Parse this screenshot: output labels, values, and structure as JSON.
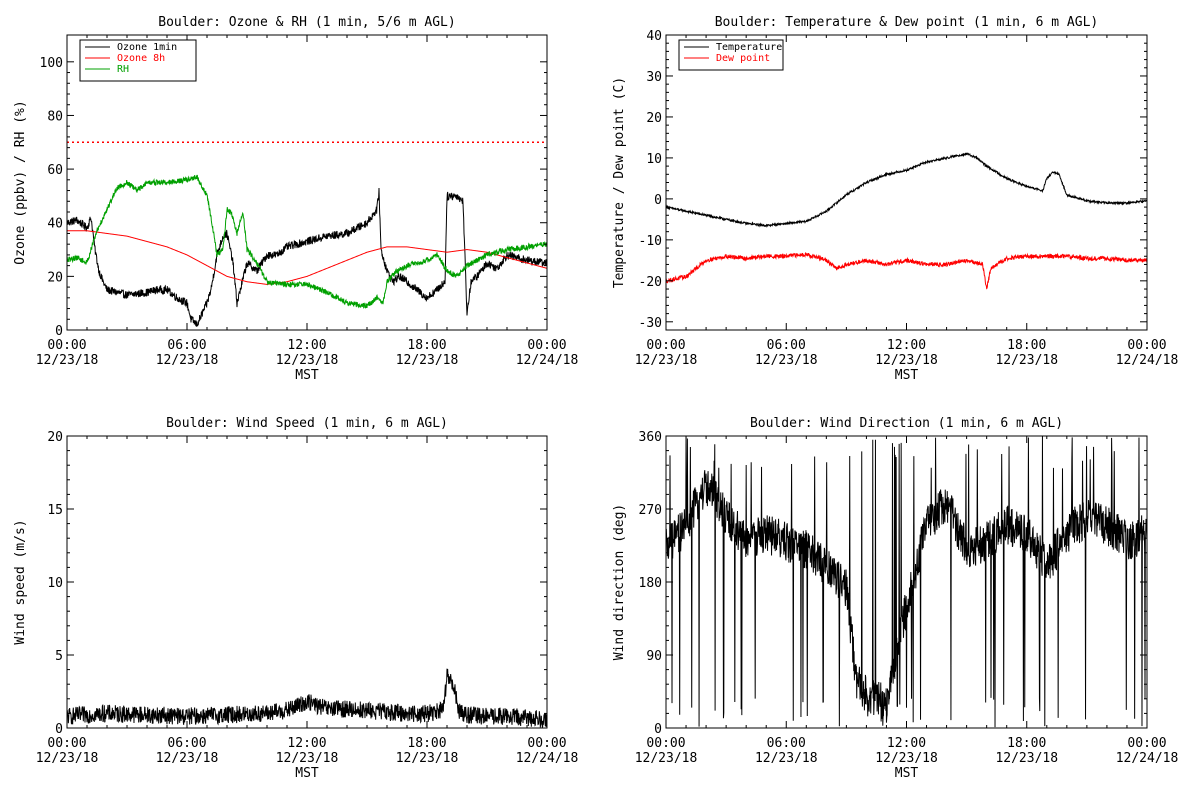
{
  "chart_data": [
    {
      "type": "line",
      "title": "Boulder: Ozone & RH (1 min, 5/6 m AGL)",
      "xlabel": "MST",
      "ylabel": "Ozone (ppbv) / RH (%)",
      "ylim": [
        0,
        110
      ],
      "yticks": [
        "0",
        "20",
        "40",
        "60",
        "80",
        "100"
      ],
      "xlim": [
        0,
        24
      ],
      "xticks": [
        {
          "time": "00:00",
          "date": "12/23/18"
        },
        {
          "time": "06:00",
          "date": "12/23/18"
        },
        {
          "time": "12:00",
          "date": "12/23/18"
        },
        {
          "time": "18:00",
          "date": "12/23/18"
        },
        {
          "time": "00:00",
          "date": "12/24/18"
        }
      ],
      "legend": "top-left",
      "reference_line": {
        "y": 70,
        "color": "#ff0000",
        "style": "dotted"
      },
      "series": [
        {
          "name": "Ozone 1min",
          "color": "#000000",
          "noise": 1.5,
          "x": [
            0,
            0.5,
            1,
            1.2,
            1.4,
            1.6,
            1.8,
            2,
            3,
            4,
            4.5,
            5,
            5.5,
            6,
            6.2,
            6.5,
            7,
            7.2,
            7.5,
            7.8,
            8,
            8.3,
            8.5,
            9,
            9.5,
            10,
            10.5,
            11,
            12,
            13,
            14,
            15,
            15.5,
            15.6,
            15.7,
            16,
            16.3,
            16.6,
            17,
            17.5,
            18,
            18.5,
            18.9,
            19,
            19.5,
            19.8,
            20,
            20.2,
            20.5,
            21,
            21.5,
            22,
            23,
            24
          ],
          "y": [
            40,
            41,
            38,
            42,
            30,
            22,
            18,
            15,
            13,
            14,
            15,
            15,
            12,
            10,
            4,
            2,
            10,
            15,
            28,
            35,
            36,
            25,
            10,
            25,
            22,
            28,
            28,
            31,
            33,
            35,
            36,
            40,
            45,
            52,
            30,
            22,
            18,
            20,
            18,
            15,
            12,
            15,
            18,
            50,
            50,
            48,
            6,
            18,
            20,
            25,
            23,
            28,
            26,
            25
          ]
        },
        {
          "name": "Ozone 8h",
          "color": "#ff0000",
          "noise": 0,
          "x": [
            0,
            1,
            2,
            3,
            4,
            5,
            6,
            7,
            8,
            9,
            10,
            11,
            12,
            13,
            14,
            15,
            16,
            17,
            18,
            19,
            20,
            21,
            22,
            23,
            24
          ],
          "y": [
            37,
            37,
            36,
            35,
            33,
            31,
            28,
            24,
            20,
            18,
            17,
            18,
            20,
            23,
            26,
            29,
            31,
            31,
            30,
            29,
            30,
            29,
            27,
            25,
            23
          ]
        },
        {
          "name": "RH",
          "color": "#00a000",
          "noise": 1.0,
          "x": [
            0,
            0.5,
            1,
            1.2,
            1.5,
            2,
            2.5,
            3,
            3.5,
            4,
            5,
            6,
            6.5,
            7,
            7.2,
            7.5,
            7.8,
            8,
            8.2,
            8.5,
            8.8,
            9,
            9.5,
            10,
            11,
            12,
            13,
            14,
            15,
            15.5,
            15.8,
            16,
            16.5,
            17,
            18,
            18.5,
            19,
            19.5,
            20,
            21,
            22,
            23,
            24
          ],
          "y": [
            26,
            27,
            25,
            30,
            37,
            45,
            53,
            55,
            52,
            55,
            55,
            56,
            57,
            50,
            42,
            28,
            30,
            45,
            44,
            36,
            44,
            30,
            25,
            18,
            17,
            17,
            14,
            10,
            9,
            12,
            10,
            18,
            22,
            24,
            26,
            28,
            22,
            20,
            24,
            28,
            30,
            31,
            32
          ]
        }
      ]
    },
    {
      "type": "line",
      "title": "Boulder: Temperature & Dew point (1 min, 6 m AGL)",
      "xlabel": "MST",
      "ylabel": "Temperature / Dew point (C)",
      "ylim": [
        -32,
        40
      ],
      "yticks": [
        "-30",
        "-20",
        "-10",
        "0",
        "10",
        "20",
        "30",
        "40"
      ],
      "xlim": [
        0,
        24
      ],
      "xticks": [
        {
          "time": "00:00",
          "date": "12/23/18"
        },
        {
          "time": "06:00",
          "date": "12/23/18"
        },
        {
          "time": "12:00",
          "date": "12/23/18"
        },
        {
          "time": "18:00",
          "date": "12/23/18"
        },
        {
          "time": "00:00",
          "date": "12/24/18"
        }
      ],
      "legend": "top-left",
      "series": [
        {
          "name": "Temperature",
          "color": "#000000",
          "noise": 0.25,
          "x": [
            0,
            1,
            2,
            3,
            4,
            5,
            6,
            7,
            8,
            9,
            10,
            11,
            12,
            13,
            14,
            15,
            15.5,
            16,
            17,
            18,
            18.8,
            19,
            19.3,
            19.6,
            20,
            21,
            22,
            23,
            24
          ],
          "y": [
            -2,
            -3,
            -4,
            -5,
            -6,
            -6.5,
            -6,
            -5.5,
            -3,
            1,
            4,
            6,
            7,
            9,
            10,
            11,
            10,
            8,
            5,
            3,
            2,
            5,
            6.5,
            6,
            1,
            -0.5,
            -1,
            -1,
            -0.5
          ]
        },
        {
          "name": "Dew point",
          "color": "#ff0000",
          "noise": 0.5,
          "x": [
            0,
            1,
            1.5,
            2,
            3,
            4,
            5,
            6,
            7,
            8,
            8.5,
            9,
            10,
            11,
            12,
            13,
            14,
            15,
            15.8,
            16,
            16.2,
            17,
            18,
            19,
            20,
            21,
            22,
            23,
            24
          ],
          "y": [
            -20,
            -19,
            -17,
            -15,
            -14,
            -14.5,
            -14,
            -14,
            -13.5,
            -15,
            -17,
            -16,
            -15,
            -16,
            -15,
            -16,
            -16,
            -15,
            -16,
            -22,
            -17,
            -14.5,
            -14,
            -14,
            -14,
            -14.5,
            -14.5,
            -15,
            -15
          ]
        }
      ]
    },
    {
      "type": "line",
      "title": "Boulder: Wind Speed (1 min, 6 m AGL)",
      "xlabel": "MST",
      "ylabel": "Wind speed (m/s)",
      "ylim": [
        0,
        20
      ],
      "yticks": [
        "0",
        "5",
        "10",
        "15",
        "20"
      ],
      "xlim": [
        0,
        24
      ],
      "xticks": [
        {
          "time": "00:00",
          "date": "12/23/18"
        },
        {
          "time": "06:00",
          "date": "12/23/18"
        },
        {
          "time": "12:00",
          "date": "12/23/18"
        },
        {
          "time": "18:00",
          "date": "12/23/18"
        },
        {
          "time": "00:00",
          "date": "12/24/18"
        }
      ],
      "series": [
        {
          "color": "#000000",
          "noise": 0.6,
          "x": [
            0,
            2,
            4,
            6,
            8,
            10,
            11,
            12,
            13,
            14,
            15,
            16,
            17,
            18,
            18.8,
            19,
            19.3,
            19.6,
            20,
            21,
            22,
            23,
            24
          ],
          "y": [
            0.8,
            1.0,
            0.9,
            0.8,
            0.9,
            1.0,
            1.2,
            1.8,
            1.3,
            1.3,
            1.2,
            1.1,
            1.0,
            1.0,
            1.2,
            3.5,
            3.0,
            1.2,
            0.9,
            0.8,
            0.8,
            0.7,
            0.6
          ]
        }
      ]
    },
    {
      "type": "line",
      "title": "Boulder: Wind Direction (1 min, 6 m AGL)",
      "xlabel": "MST",
      "ylabel": "Wind direction (deg)",
      "ylim": [
        0,
        360
      ],
      "yticks": [
        "0",
        "90",
        "180",
        "270",
        "360"
      ],
      "xlim": [
        0,
        24
      ],
      "xticks": [
        {
          "time": "00:00",
          "date": "12/23/18"
        },
        {
          "time": "06:00",
          "date": "12/23/18"
        },
        {
          "time": "12:00",
          "date": "12/23/18"
        },
        {
          "time": "18:00",
          "date": "12/23/18"
        },
        {
          "time": "00:00",
          "date": "12/24/18"
        }
      ],
      "series": [
        {
          "color": "#000000",
          "noise": 25,
          "jumps": 0.06,
          "x": [
            0,
            1,
            2,
            3,
            4,
            5,
            6,
            7,
            8,
            9,
            9.5,
            10,
            11,
            12,
            13,
            14,
            15,
            16,
            17,
            18,
            19,
            20,
            21,
            22,
            23,
            24
          ],
          "y": [
            220,
            250,
            300,
            260,
            230,
            240,
            230,
            220,
            200,
            170,
            60,
            40,
            30,
            150,
            250,
            280,
            220,
            230,
            250,
            240,
            200,
            240,
            260,
            250,
            230,
            240
          ]
        }
      ]
    }
  ]
}
